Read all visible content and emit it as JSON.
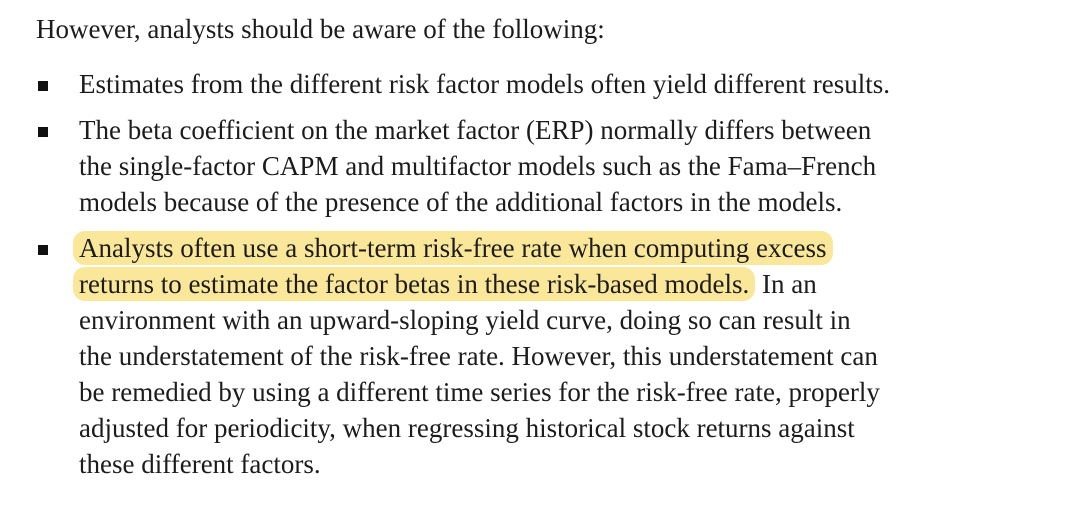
{
  "intro": "However, analysts should be aware of the following:",
  "bullets": [
    {
      "lines": [
        "Estimates from the different risk factor models often yield different results."
      ]
    },
    {
      "lines": [
        "The beta coefficient on the market factor (ERP) normally differs between",
        "the single-factor CAPM and multifactor models such as the Fama–French",
        "models because of the presence of the additional factors in the models."
      ]
    },
    {
      "highlighted_lines": [
        "Analysts often use a short-term risk-free rate when computing excess",
        "returns to estimate the factor betas in these risk-based models."
      ],
      "line2_tail": " In an",
      "lines": [
        "environment with an upward-sloping yield curve, doing so can result in",
        "the understatement of the risk-free rate. However, this understatement can",
        "be remedied by using a different time series for the risk-free rate, properly",
        "adjusted for periodicity, when regressing historical stock returns against",
        "these different factors."
      ],
      "highlight_color": "#fbe79a"
    }
  ]
}
